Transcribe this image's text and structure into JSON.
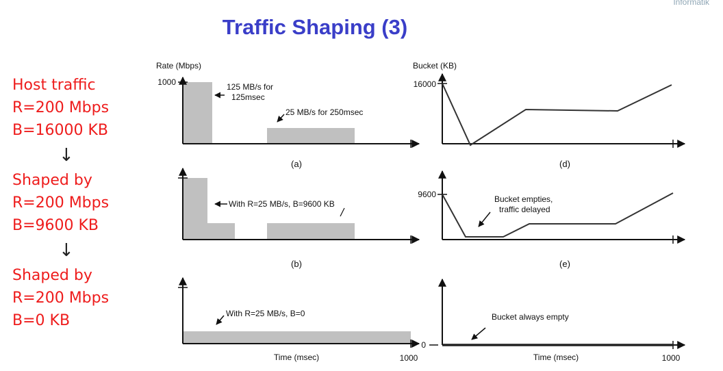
{
  "header": {
    "corner_text": "Informatik",
    "title": "Traffic Shaping (3)"
  },
  "left_panel": {
    "host": {
      "line1": "Host traffic",
      "line2": "R=200 Mbps",
      "line3": "B=16000 KB"
    },
    "shaped1": {
      "line1": "Shaped by",
      "line2": "R=200 Mbps",
      "line3": "B=9600 KB"
    },
    "shaped2": {
      "line1": "Shaped by",
      "line2": "R=200 Mbps",
      "line3": "B=0 KB"
    },
    "arrow": "↓"
  },
  "figure": {
    "rate_axis_label": "Rate (Mbps)",
    "bucket_axis_label": "Bucket (KB)",
    "time_axis_label": "Time (msec)",
    "tick_1000": "1000",
    "tick_16000": "16000",
    "tick_9600": "9600",
    "tick_0": "0",
    "panel_a": {
      "label": "(a)",
      "ann1_line1": "125 MB/s for",
      "ann1_line2": "125msec",
      "ann2": "25 MB/s for 250msec"
    },
    "panel_b": {
      "label": "(b)",
      "ann": "With R=25 MB/s, B=9600 KB"
    },
    "panel_c": {
      "ann": "With R=25 MB/s, B=0"
    },
    "panel_d": {
      "label": "(d)"
    },
    "panel_e": {
      "label": "(e)",
      "ann_line1": "Bucket empties,",
      "ann_line2": "traffic delayed"
    },
    "panel_f": {
      "ann": "Bucket always empty"
    }
  },
  "colors": {
    "title": "#3a3ec8",
    "left_text": "#ee1c1c",
    "bar_fill": "#c0c0c0"
  }
}
